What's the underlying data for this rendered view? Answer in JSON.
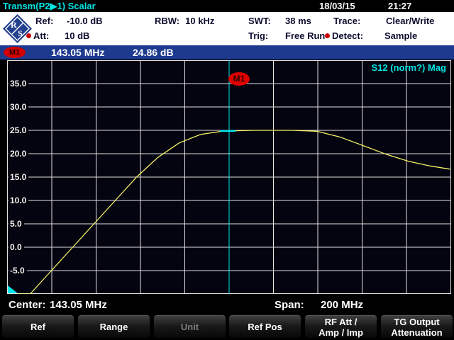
{
  "top_bar": {
    "title": "Transm(P2▶1) Scalar",
    "date": "18/03/15",
    "time": "21:27"
  },
  "header": {
    "fields": [
      {
        "label": "Ref:",
        "value": "-10.0 dB"
      },
      {
        "label": "RBW:",
        "value": "10 kHz"
      },
      {
        "label": "SWT:",
        "value": "38 ms"
      },
      {
        "label": "Trace:",
        "value": "Clear/Write"
      },
      {
        "label": "Att:",
        "value": "10 dB"
      },
      {
        "label": "Trig:",
        "value": "Free Run"
      },
      {
        "label": "Detect:",
        "value": "Sample"
      }
    ]
  },
  "marker_bar": {
    "marker": "M1",
    "frequency": "143.05 MHz",
    "level": "24.86 dB"
  },
  "graph": {
    "trace_label": "S12 (norm?) Mag",
    "marker_flag": "M1",
    "y_ticks": [
      "35.0",
      "30.0",
      "25.0",
      "20.0",
      "15.0",
      "10.0",
      "5.0",
      "0.0",
      "-5.0"
    ]
  },
  "chart_data": {
    "type": "line",
    "title": "S12 (norm?) Mag",
    "x_unit": "MHz",
    "y_unit": "dB",
    "x_range": [
      43.05,
      243.05
    ],
    "y_range": [
      -10,
      40
    ],
    "x_divisions": 10,
    "y_divisions": 10,
    "y_tick_values": [
      35,
      30,
      25,
      20,
      15,
      10,
      5,
      0,
      -5
    ],
    "center_mhz": 143.05,
    "span_mhz": 200,
    "marker": {
      "name": "M1",
      "freq_mhz": 143.05,
      "level_db": 24.86
    },
    "series": [
      {
        "name": "S12 Mag trace",
        "color": "#f4f163",
        "points": [
          [
            47.5,
            -10
          ],
          [
            53.3,
            -10
          ],
          [
            62.9,
            -5
          ],
          [
            72.5,
            0
          ],
          [
            82.1,
            5
          ],
          [
            91.7,
            10
          ],
          [
            101.3,
            15
          ],
          [
            110.9,
            19.2
          ],
          [
            120.5,
            22.3
          ],
          [
            130.1,
            24.1
          ],
          [
            139.7,
            24.8
          ],
          [
            143.05,
            24.86
          ],
          [
            155.1,
            25.0
          ],
          [
            171.1,
            25.0
          ],
          [
            182.6,
            24.8
          ],
          [
            192.8,
            23.6
          ],
          [
            203.1,
            21.8
          ],
          [
            214.3,
            19.8
          ],
          [
            223.9,
            18.4
          ],
          [
            233.5,
            17.4
          ],
          [
            242.7,
            16.7
          ]
        ]
      }
    ]
  },
  "status_bar": {
    "center_label": "Center:",
    "center_value": "143.05 MHz",
    "span_label": "Span:",
    "span_value": "200 MHz"
  },
  "softkeys": [
    {
      "label": "Ref",
      "enabled": true
    },
    {
      "label": "Range",
      "enabled": true
    },
    {
      "label": "Unit",
      "enabled": false
    },
    {
      "label": "Ref Pos",
      "enabled": true
    },
    {
      "label": "RF Att /\nAmp / Imp",
      "enabled": true
    },
    {
      "label": "TG Output\nAttenuation",
      "enabled": true
    }
  ],
  "colors": {
    "accent_cyan": "#00e6e6",
    "grid": "#e2e2e2",
    "trace_yellow": "#f4f163",
    "marker_red": "#d40000",
    "marker_bar_bg": "#1d3a8e",
    "header_text": "#0c0c2e",
    "graph_bg": "#040310"
  }
}
